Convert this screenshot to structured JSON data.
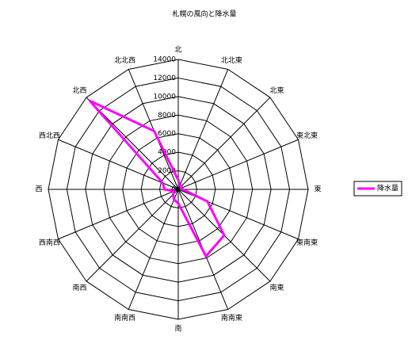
{
  "chart_data": {
    "type": "radar",
    "title": "札幌の風向と降水量",
    "categories": [
      "北",
      "北北東",
      "北東",
      "東北東",
      "東",
      "東南東",
      "南東",
      "南南東",
      "南",
      "南南西",
      "南西",
      "西南西",
      "西",
      "西北西",
      "北西",
      "北北西"
    ],
    "series": [
      {
        "name": "降水量",
        "color": "#ff00ff",
        "values": [
          1000,
          500,
          500,
          300,
          500,
          3400,
          7000,
          7800,
          1500,
          1200,
          800,
          500,
          1500,
          1800,
          13500,
          6800
        ]
      }
    ],
    "rlim": [
      0,
      14000
    ],
    "rticks": [
      0,
      2000,
      4000,
      6000,
      8000,
      10000,
      12000,
      14000
    ],
    "grid": true
  }
}
